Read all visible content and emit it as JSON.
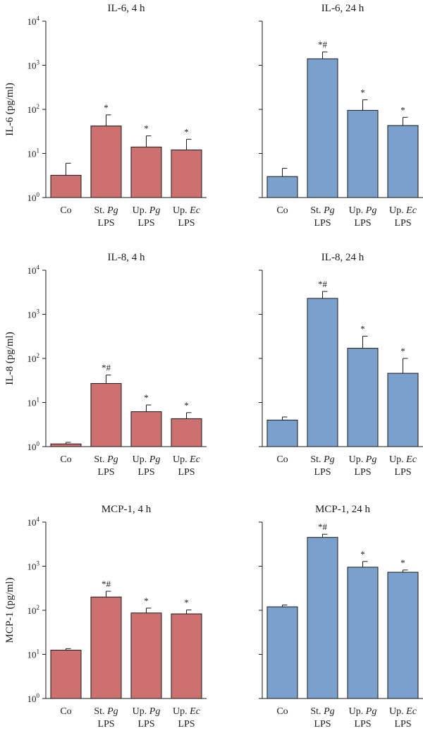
{
  "colors": {
    "four_h": "#cd7070",
    "twenty_four_h": "#7aa0cc",
    "stroke": "#1a1a1a"
  },
  "chart_data": [
    {
      "type": "bar",
      "title": "IL-6, 4 h",
      "ylabel": "IL-6 (pg/ml)",
      "yscale": "log",
      "ylim": [
        1,
        10000
      ],
      "yticks": [
        {
          "base": "10",
          "exp": "0"
        },
        {
          "base": "10",
          "exp": "1"
        },
        {
          "base": "10",
          "exp": "2"
        },
        {
          "base": "10",
          "exp": "3"
        },
        {
          "base": "10",
          "exp": "4"
        }
      ],
      "categories": [
        {
          "line1": "Co",
          "line2": ""
        },
        {
          "line1_pre": "St. ",
          "line1_em": "Pg",
          "line2": "LPS"
        },
        {
          "line1_pre": "Up. ",
          "line1_em": "Pg",
          "line2": "LPS"
        },
        {
          "line1_pre": "Up. ",
          "line1_em": "Ec",
          "line2": "LPS"
        }
      ],
      "values": [
        3.2,
        42,
        14,
        12
      ],
      "error_upper": [
        6.0,
        75,
        25,
        21
      ],
      "significance": [
        "",
        "*",
        "*",
        "*"
      ],
      "color": "#cd7070"
    },
    {
      "type": "bar",
      "title": "IL-6, 24 h",
      "ylabel": "",
      "yscale": "log",
      "ylim": [
        1,
        10000
      ],
      "yticks": [],
      "categories": [
        {
          "line1": "Co",
          "line2": ""
        },
        {
          "line1_pre": "St. ",
          "line1_em": "Pg",
          "line2": "LPS"
        },
        {
          "line1_pre": "Up. ",
          "line1_em": "Pg",
          "line2": "LPS"
        },
        {
          "line1_pre": "Up. ",
          "line1_em": "Ec",
          "line2": "LPS"
        }
      ],
      "values": [
        3.0,
        1400,
        95,
        43
      ],
      "error_upper": [
        4.6,
        2000,
        165,
        66
      ],
      "significance": [
        "",
        "*#",
        "*",
        "*"
      ],
      "color": "#7aa0cc"
    },
    {
      "type": "bar",
      "title": "IL-8, 4 h",
      "ylabel": "IL-8 (pg/ml)",
      "yscale": "log",
      "ylim": [
        1,
        10000
      ],
      "yticks": [
        {
          "base": "10",
          "exp": "0"
        },
        {
          "base": "10",
          "exp": "1"
        },
        {
          "base": "10",
          "exp": "2"
        },
        {
          "base": "10",
          "exp": "3"
        },
        {
          "base": "10",
          "exp": "4"
        }
      ],
      "categories": [
        {
          "line1": "Co",
          "line2": ""
        },
        {
          "line1_pre": "St. ",
          "line1_em": "Pg",
          "line2": "LPS"
        },
        {
          "line1_pre": "Up. ",
          "line1_em": "Pg",
          "line2": "LPS"
        },
        {
          "line1_pre": "Up. ",
          "line1_em": "Ec",
          "line2": "LPS"
        }
      ],
      "values": [
        1.15,
        27,
        6.2,
        4.3
      ],
      "error_upper": [
        1.25,
        42,
        8.8,
        5.9
      ],
      "significance": [
        "",
        "*#",
        "*",
        "*"
      ],
      "color": "#cd7070"
    },
    {
      "type": "bar",
      "title": "IL-8, 24 h",
      "ylabel": "",
      "yscale": "log",
      "ylim": [
        1,
        10000
      ],
      "yticks": [],
      "categories": [
        {
          "line1": "Co",
          "line2": ""
        },
        {
          "line1_pre": "St. ",
          "line1_em": "Pg",
          "line2": "LPS"
        },
        {
          "line1_pre": "Up. ",
          "line1_em": "Pg",
          "line2": "LPS"
        },
        {
          "line1_pre": "Up. ",
          "line1_em": "Ec",
          "line2": "LPS"
        }
      ],
      "values": [
        4.0,
        2300,
        170,
        46
      ],
      "error_upper": [
        4.7,
        3300,
        320,
        100
      ],
      "significance": [
        "",
        "*#",
        "*",
        "*"
      ],
      "color": "#7aa0cc"
    },
    {
      "type": "bar",
      "title": "MCP-1, 4 h",
      "ylabel": "MCP-1 (pg/ml)",
      "yscale": "log",
      "ylim": [
        1,
        10000
      ],
      "yticks": [
        {
          "base": "10",
          "exp": "0"
        },
        {
          "base": "10",
          "exp": "1"
        },
        {
          "base": "10",
          "exp": "2"
        },
        {
          "base": "10",
          "exp": "3"
        },
        {
          "base": "10",
          "exp": "4"
        }
      ],
      "categories": [
        {
          "line1": "Co",
          "line2": ""
        },
        {
          "line1_pre": "St. ",
          "line1_em": "Pg",
          "line2": "LPS"
        },
        {
          "line1_pre": "Up. ",
          "line1_em": "Pg",
          "line2": "LPS"
        },
        {
          "line1_pre": "Up. ",
          "line1_em": "Ec",
          "line2": "LPS"
        }
      ],
      "values": [
        12.5,
        200,
        87,
        83
      ],
      "error_upper": [
        13.5,
        270,
        112,
        102
      ],
      "significance": [
        "",
        "*#",
        "*",
        "*"
      ],
      "color": "#cd7070"
    },
    {
      "type": "bar",
      "title": "MCP-1, 24 h",
      "ylabel": "",
      "yscale": "log",
      "ylim": [
        1,
        10000
      ],
      "yticks": [],
      "categories": [
        {
          "line1": "Co",
          "line2": ""
        },
        {
          "line1_pre": "St. ",
          "line1_em": "Pg",
          "line2": "LPS"
        },
        {
          "line1_pre": "Up. ",
          "line1_em": "Pg",
          "line2": "LPS"
        },
        {
          "line1_pre": "Up. ",
          "line1_em": "Ec",
          "line2": "LPS"
        }
      ],
      "values": [
        120,
        4500,
        950,
        730
      ],
      "error_upper": [
        132,
        5300,
        1280,
        820
      ],
      "significance": [
        "",
        "*#",
        "*",
        "*"
      ],
      "color": "#7aa0cc"
    }
  ]
}
